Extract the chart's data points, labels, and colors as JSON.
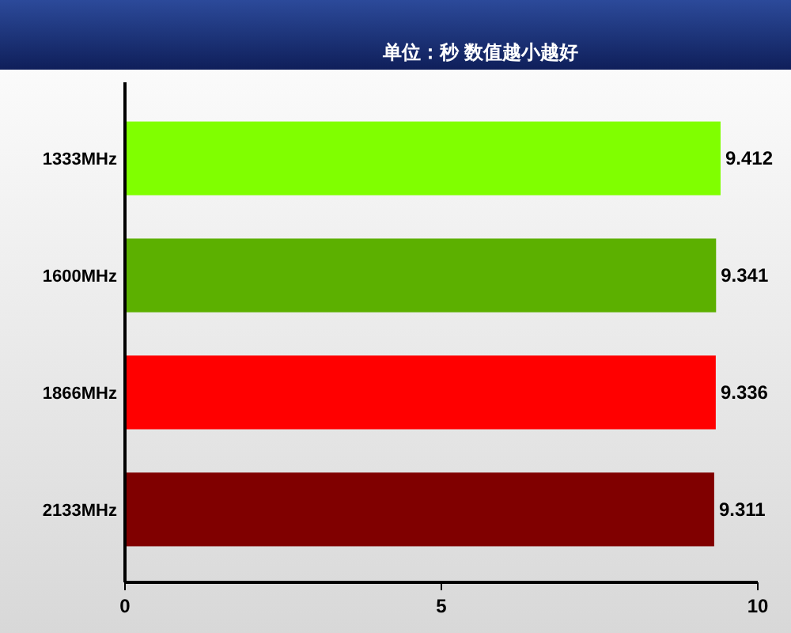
{
  "chart_data": {
    "type": "bar",
    "orientation": "horizontal",
    "subtitle": "单位：秒 数值越小越好",
    "categories": [
      "1333MHz",
      "1600MHz",
      "1866MHz",
      "2133MHz"
    ],
    "values": [
      9.412,
      9.341,
      9.336,
      9.311
    ],
    "colors": [
      "#80ff00",
      "#5cb000",
      "#ff0000",
      "#800000"
    ],
    "xlim": [
      0,
      10
    ],
    "xticks": [
      0,
      5,
      10
    ],
    "data_labels": true,
    "grid": false
  }
}
